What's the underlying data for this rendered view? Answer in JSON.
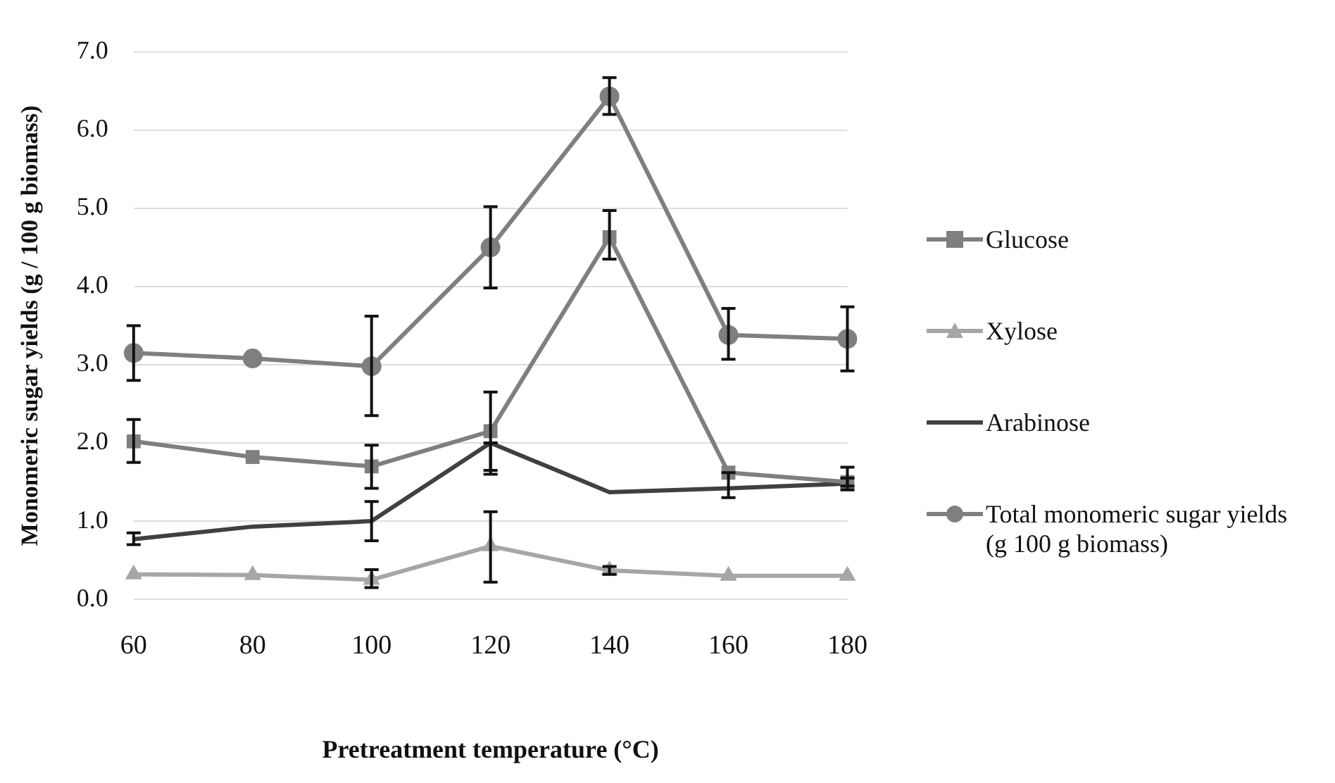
{
  "chart_data": {
    "type": "line",
    "xlabel": "Pretreatment temperature (°C)",
    "ylabel": "Monomeric sugar yields (g / 100 g biomass)",
    "categories": [
      "60",
      "80",
      "100",
      "120",
      "140",
      "160",
      "180"
    ],
    "ylim": [
      0,
      7
    ],
    "yticks": [
      {
        "value": 0,
        "label": "0.0"
      },
      {
        "value": 1,
        "label": "1.0"
      },
      {
        "value": 2,
        "label": "2.0"
      },
      {
        "value": 3,
        "label": "3.0"
      },
      {
        "value": 4,
        "label": "4.0"
      },
      {
        "value": 5,
        "label": "5.0"
      },
      {
        "value": 6,
        "label": "6.0"
      },
      {
        "value": 7,
        "label": "7.0"
      }
    ],
    "grid": "y",
    "legend": "right",
    "series": [
      {
        "name": "Glucose",
        "color": "#7f7f7f",
        "marker": "square",
        "values": [
          2.02,
          1.82,
          1.7,
          2.15,
          4.63,
          1.62,
          1.5
        ],
        "errors": [
          [
            1.75,
            2.3
          ],
          null,
          [
            1.42,
            1.97
          ],
          [
            1.65,
            2.65
          ],
          [
            4.35,
            4.97
          ],
          [
            1.3,
            1.62
          ],
          [
            1.4,
            1.69
          ]
        ]
      },
      {
        "name": "Xylose",
        "color": "#a6a6a6",
        "marker": "triangle",
        "values": [
          0.32,
          0.31,
          0.25,
          0.68,
          0.37,
          0.3,
          0.3
        ],
        "errors": [
          null,
          null,
          [
            0.15,
            0.38
          ],
          [
            0.22,
            1.12
          ],
          [
            0.32,
            0.42
          ],
          null,
          null
        ]
      },
      {
        "name": "Arabinose",
        "color": "#404040",
        "marker": "none",
        "values": [
          0.77,
          0.93,
          1.0,
          2.0,
          1.37,
          1.42,
          1.48
        ],
        "errors": [
          [
            0.7,
            0.85
          ],
          null,
          [
            0.75,
            1.25
          ],
          [
            1.6,
            2.0
          ],
          null,
          null,
          [
            1.45,
            1.55
          ]
        ]
      },
      {
        "name": "Total monomeric sugar yields (g 100 g biomass)",
        "color": "#7f7f7f",
        "marker": "circle",
        "values": [
          3.15,
          3.08,
          2.98,
          4.5,
          6.43,
          3.38,
          3.33
        ],
        "errors": [
          [
            2.8,
            3.5
          ],
          null,
          [
            2.35,
            3.62
          ],
          [
            3.98,
            5.02
          ],
          [
            6.2,
            6.67
          ],
          [
            3.07,
            3.72
          ],
          [
            2.92,
            3.74
          ]
        ]
      }
    ]
  }
}
